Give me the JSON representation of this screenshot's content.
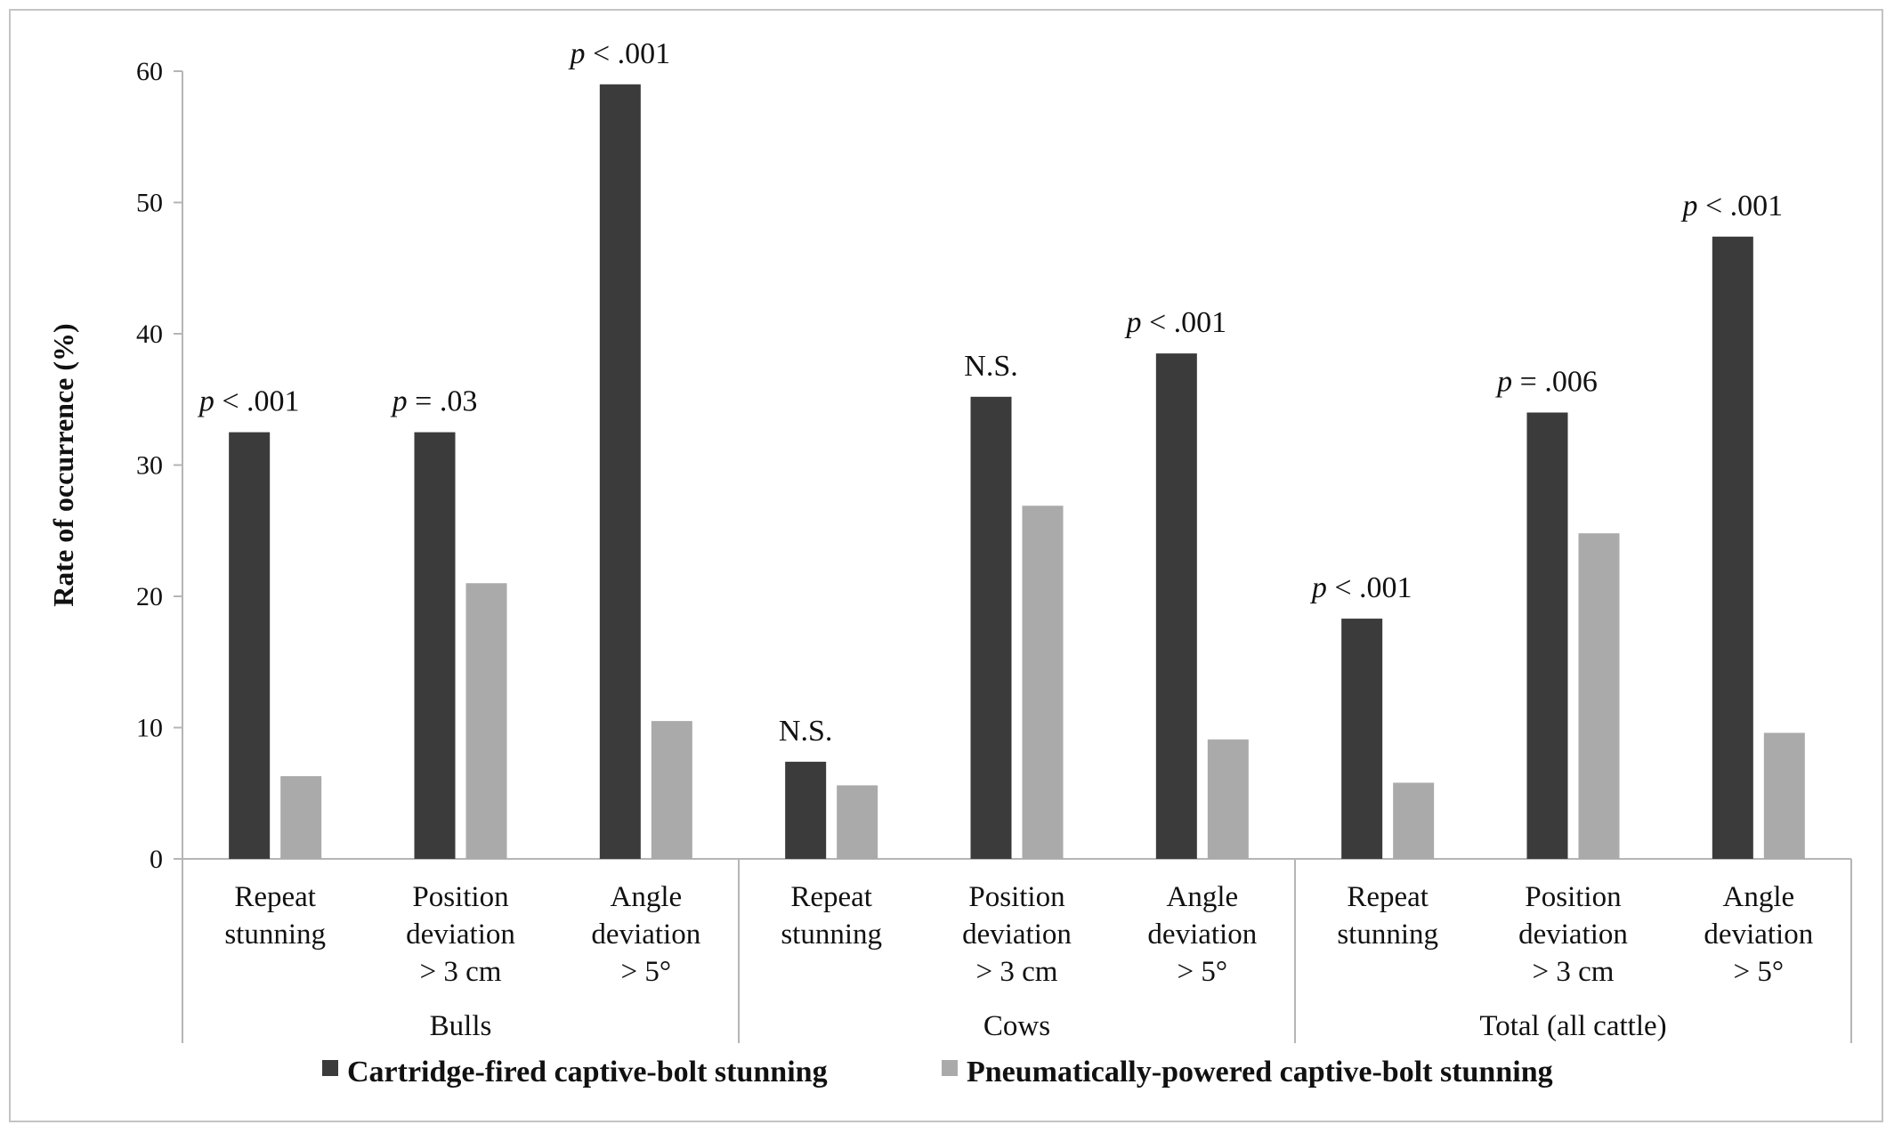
{
  "chart_data": {
    "type": "bar",
    "ylabel": "Rate of occurrence (%)",
    "ylim": [
      0,
      60
    ],
    "yticks": [
      "0",
      "10",
      "20",
      "30",
      "40",
      "50",
      "60"
    ],
    "grid": false,
    "legend_position": "bottom",
    "groups": [
      {
        "name": "Bulls",
        "categories": [
          {
            "lines": [
              "Repeat",
              "stunning"
            ],
            "cartridge": 32.5,
            "pneumatic": 6.3,
            "p_prefix": "p",
            "p_rest": " < .001"
          },
          {
            "lines": [
              "Position",
              "deviation",
              "> 3 cm"
            ],
            "cartridge": 32.5,
            "pneumatic": 21.0,
            "p_prefix": "p",
            "p_rest": " = .03"
          },
          {
            "lines": [
              "Angle",
              "deviation",
              "> 5°"
            ],
            "cartridge": 59.0,
            "pneumatic": 10.5,
            "p_prefix": "p",
            "p_rest": " < .001"
          }
        ]
      },
      {
        "name": "Cows",
        "categories": [
          {
            "lines": [
              "Repeat",
              "stunning"
            ],
            "cartridge": 7.4,
            "pneumatic": 5.6,
            "p_prefix": "",
            "p_rest": "N.S."
          },
          {
            "lines": [
              "Position",
              "deviation",
              "> 3 cm"
            ],
            "cartridge": 35.2,
            "pneumatic": 26.9,
            "p_prefix": "",
            "p_rest": "N.S."
          },
          {
            "lines": [
              "Angle",
              "deviation",
              "> 5°"
            ],
            "cartridge": 38.5,
            "pneumatic": 9.1,
            "p_prefix": "p",
            "p_rest": " < .001"
          }
        ]
      },
      {
        "name": "Total (all cattle)",
        "categories": [
          {
            "lines": [
              "Repeat",
              "stunning"
            ],
            "cartridge": 18.3,
            "pneumatic": 5.8,
            "p_prefix": "p",
            "p_rest": " < .001"
          },
          {
            "lines": [
              "Position",
              "deviation",
              "> 3 cm"
            ],
            "cartridge": 34.0,
            "pneumatic": 24.8,
            "p_prefix": "p",
            "p_rest": " = .006"
          },
          {
            "lines": [
              "Angle",
              "deviation",
              "> 5°"
            ],
            "cartridge": 47.4,
            "pneumatic": 9.6,
            "p_prefix": "p",
            "p_rest": " < .001"
          }
        ]
      }
    ],
    "series": [
      {
        "key": "cartridge",
        "name": "Cartridge-fired captive-bolt stunning",
        "color": "#3b3b3b"
      },
      {
        "key": "pneumatic",
        "name": "Pneumatically-powered captive-bolt stunning",
        "color": "#aaaaaa"
      }
    ]
  }
}
